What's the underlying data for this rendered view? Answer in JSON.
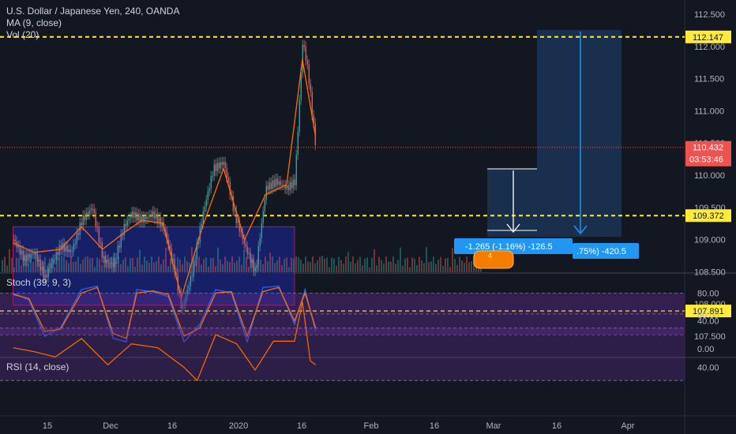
{
  "header": {
    "symbol": "U.S. Dollar / Japanese Yen, 240, OANDA",
    "ma": "MA (9, close)",
    "vol": "Vol (20)"
  },
  "price_labels": {
    "upper": "112.147",
    "lower_mid": "109.372",
    "lower": "107.891",
    "last": "110.432",
    "countdown": "03:53:46"
  },
  "measure_labels": {
    "short": "-1.265 (-1.16%) -126.5",
    "long": ".75%) -420.5",
    "badge": "4"
  },
  "panes": {
    "stoch_title": "Stoch (39, 9, 3)",
    "rsi_title": "RSI (14, close)"
  },
  "colors": {
    "background": "#131722",
    "candle_up": "#26a69a",
    "candle_down": "#ef5350",
    "ma": "#ff6d00",
    "level_line": "#ffeb3b",
    "zone_fill": "#1a237e",
    "osc_band": "#5e2a8c",
    "stoch_k": "#2962ff",
    "stoch_d": "#ff6d00",
    "rsi": "#ff6d00",
    "measure": "#2196f3"
  },
  "chart_data": {
    "type": "line",
    "title": "U.S. Dollar / Japanese Yen, 240, OANDA",
    "xlabel": "",
    "ylabel": "",
    "x_ticks": [
      "15",
      "Dec",
      "16",
      "2020",
      "16",
      "Feb",
      "16",
      "Mar",
      "16",
      "Apr"
    ],
    "price_axis": {
      "ticks": [
        "112.500",
        "112.000",
        "111.500",
        "111.000",
        "110.500",
        "110.000",
        "109.500",
        "109.000",
        "108.500",
        "108.000",
        "107.500"
      ],
      "ylim": [
        107.3,
        112.55
      ]
    },
    "levels": [
      112.147,
      109.372,
      107.891
    ],
    "last_price": 110.432,
    "zone": {
      "from_date": "2019-11-01",
      "to_date": "2020-02-16",
      "top": 109.2,
      "bottom": 107.98
    },
    "series": [
      {
        "name": "USDJPY",
        "x": [
          "2019-11-01",
          "2019-11-05",
          "2019-11-09",
          "2019-11-13",
          "2019-11-15",
          "2019-11-19",
          "2019-11-23",
          "2019-11-27",
          "2019-12-01",
          "2019-12-05",
          "2019-12-09",
          "2019-12-13",
          "2019-12-16",
          "2019-12-20",
          "2019-12-24",
          "2019-12-28",
          "2020-01-01",
          "2020-01-04",
          "2020-01-08",
          "2020-01-12",
          "2020-01-16",
          "2020-01-20",
          "2020-01-24",
          "2020-01-28",
          "2020-02-01",
          "2020-02-05",
          "2020-02-09",
          "2020-02-13",
          "2020-02-16",
          "2020-02-19",
          "2020-02-21",
          "2020-02-24"
        ],
        "values": [
          109.0,
          108.7,
          108.8,
          108.4,
          108.6,
          108.9,
          108.8,
          109.3,
          109.5,
          108.7,
          108.6,
          109.2,
          109.4,
          109.3,
          109.4,
          109.2,
          108.6,
          107.9,
          108.5,
          109.4,
          110.1,
          110.2,
          109.4,
          108.9,
          108.5,
          109.8,
          109.9,
          109.8,
          109.9,
          112.1,
          111.6,
          110.4
        ]
      },
      {
        "name": "MA (9, close)",
        "x": [
          "2019-11-01",
          "2019-11-09",
          "2019-11-19",
          "2019-11-27",
          "2019-12-05",
          "2019-12-13",
          "2019-12-20",
          "2019-12-28",
          "2020-01-04",
          "2020-01-12",
          "2020-01-20",
          "2020-01-28",
          "2020-02-05",
          "2020-02-13",
          "2020-02-19",
          "2020-02-24"
        ],
        "values": [
          108.95,
          108.8,
          108.85,
          109.2,
          108.85,
          109.1,
          109.3,
          109.25,
          108.1,
          109.2,
          110.1,
          109.0,
          109.7,
          109.85,
          111.8,
          110.6
        ]
      }
    ],
    "stochastic": {
      "title": "Stoch (39, 9, 3)",
      "ticks": [
        "80.00",
        "40.00",
        "0.00"
      ],
      "band": [
        20,
        80
      ],
      "series": [
        {
          "name": "%K",
          "x": [
            "2019-11-01",
            "2019-11-07",
            "2019-11-13",
            "2019-11-19",
            "2019-11-27",
            "2019-12-03",
            "2019-12-09",
            "2019-12-14",
            "2019-12-18",
            "2019-12-24",
            "2019-12-30",
            "2020-01-05",
            "2020-01-11",
            "2020-01-17",
            "2020-01-23",
            "2020-01-29",
            "2020-02-04",
            "2020-02-10",
            "2020-02-16",
            "2020-02-20",
            "2020-02-24"
          ],
          "values": [
            80,
            70,
            18,
            30,
            85,
            90,
            15,
            10,
            85,
            82,
            75,
            10,
            35,
            85,
            80,
            10,
            88,
            90,
            35,
            85,
            25
          ]
        },
        {
          "name": "%D",
          "x": [
            "2019-11-01",
            "2019-11-07",
            "2019-11-13",
            "2019-11-19",
            "2019-11-27",
            "2019-12-03",
            "2019-12-09",
            "2019-12-14",
            "2019-12-18",
            "2019-12-24",
            "2019-12-30",
            "2020-01-05",
            "2020-01-11",
            "2020-01-17",
            "2020-01-23",
            "2020-01-29",
            "2020-02-04",
            "2020-02-10",
            "2020-02-16",
            "2020-02-20",
            "2020-02-24"
          ],
          "values": [
            78,
            72,
            25,
            28,
            80,
            88,
            22,
            15,
            80,
            83,
            78,
            18,
            30,
            80,
            82,
            18,
            82,
            88,
            40,
            80,
            30
          ]
        }
      ]
    },
    "rsi": {
      "title": "RSI (14, close)",
      "ticks": [
        "80.00",
        "40.00"
      ],
      "band": [
        30,
        70
      ],
      "values_x": [
        "2019-11-01",
        "2019-11-09",
        "2019-11-17",
        "2019-11-27",
        "2019-12-07",
        "2019-12-16",
        "2019-12-26",
        "2020-01-05",
        "2020-01-10",
        "2020-01-17",
        "2020-01-25",
        "2020-02-01",
        "2020-02-08",
        "2020-02-16",
        "2020-02-19",
        "2020-02-22",
        "2020-02-24"
      ],
      "values": [
        55,
        52,
        48,
        62,
        42,
        58,
        55,
        40,
        30,
        65,
        58,
        38,
        60,
        60,
        90,
        45,
        42
      ]
    }
  }
}
